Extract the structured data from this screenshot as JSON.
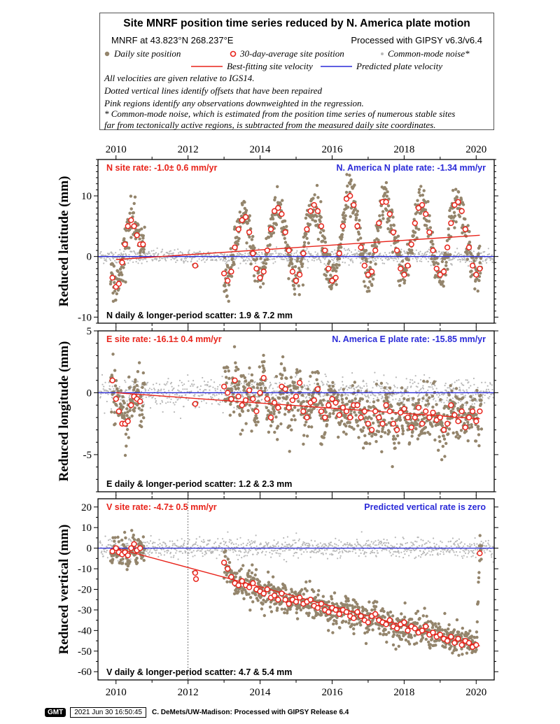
{
  "legend": {
    "title": "Site MNRF position time series reduced by N. America plate motion",
    "site_coords": "MNRF at 43.823°N 268.237°E",
    "processed": "Processed with GIPSY v6.3/v6.4",
    "daily_label": "Daily site position",
    "avg_label": "30-day-average site position",
    "cm_label": "Common-mode noise*",
    "best_fit_label": "Best-fitting site velocity",
    "predicted_label": "Predicted plate velocity",
    "notes": [
      "All velocities are given relative to IGS14.",
      "Dotted vertical lines identify offsets that have been repaired",
      "Pink regions identify any observations downweighted in the regression.",
      "* Common-mode noise, which is estimated from the position time series of numerous stable sites",
      "far from tectonically active regions, is subtracted from the measured daily site coordinates."
    ]
  },
  "colors": {
    "daily": "#94856c",
    "common_mode": "#b8b8b8",
    "avg_fill": "#ffffff",
    "avg_stroke": "#e8231a",
    "best_fit": "#e8231a",
    "predicted": "#2a2ad8",
    "site_rate_text": "#e8231a",
    "plate_rate_text": "#2a2ad8"
  },
  "footer": {
    "logo": "GMT",
    "timestamp": "2021 Jun 30 16:50:45",
    "credit": "C. DeMets/UW-Madison: Processed with GIPSY Release 6.4"
  },
  "chart_data": [
    {
      "type": "scatter",
      "component": "N",
      "ylabel": "Reduced latitude (mm)",
      "xlim": [
        2009.5,
        2020.5
      ],
      "ylim": [
        -11,
        16
      ],
      "xticks": [
        2010,
        2012,
        2014,
        2016,
        2018,
        2020
      ],
      "yticks": [
        -10,
        0,
        10
      ],
      "top_axis_labels": true,
      "bottom_axis_labels": false,
      "site_rate": "N site rate:  -1.0± 0.6 mm/yr",
      "plate_rate": "N. America N plate rate: -1.34 mm/yr",
      "scatter": "N daily & longer-period scatter:   1.9 &   7.2 mm",
      "best_fit": {
        "x": [
          2010.0,
          2020.1
        ],
        "y": [
          -0.5,
          3.5
        ]
      },
      "predicted": {
        "x": [
          2009.5,
          2020.5
        ],
        "y": [
          0,
          0
        ]
      },
      "offsets": [],
      "avg_x": [
        2009.9,
        2010.0,
        2010.08,
        2010.17,
        2010.25,
        2010.33,
        2010.42,
        2010.5,
        2010.58,
        2010.67,
        2010.75,
        2012.2,
        2013.0,
        2013.1,
        2013.2,
        2013.3,
        2013.4,
        2013.5,
        2013.6,
        2013.7,
        2013.8,
        2013.9,
        2014.0,
        2014.1,
        2014.2,
        2014.3,
        2014.4,
        2014.5,
        2014.6,
        2014.7,
        2014.8,
        2014.9,
        2015.0,
        2015.1,
        2015.2,
        2015.3,
        2015.4,
        2015.5,
        2015.6,
        2015.7,
        2015.8,
        2015.9,
        2016.0,
        2016.1,
        2016.2,
        2016.3,
        2016.4,
        2016.5,
        2016.6,
        2016.7,
        2016.8,
        2016.9,
        2017.0,
        2017.1,
        2017.2,
        2017.3,
        2017.4,
        2017.5,
        2017.6,
        2017.7,
        2017.8,
        2017.9,
        2018.0,
        2018.1,
        2018.2,
        2018.3,
        2018.4,
        2018.5,
        2018.6,
        2018.7,
        2018.8,
        2018.9,
        2019.0,
        2019.1,
        2019.2,
        2019.3,
        2019.4,
        2019.5,
        2019.6,
        2019.7,
        2019.8,
        2019.9,
        2020.0,
        2020.1
      ],
      "avg_y": [
        -3.5,
        -5.0,
        -4.5,
        -1.0,
        2.0,
        5.0,
        6.0,
        5.0,
        3.5,
        2.0,
        2.0,
        -1.5,
        -2.8,
        -4.0,
        -2.5,
        1.5,
        4.5,
        6.0,
        6.5,
        4.0,
        0.5,
        -2.0,
        -3.5,
        -2.5,
        1.0,
        4.5,
        7.5,
        8.0,
        7.0,
        4.0,
        1.0,
        -2.5,
        -4.0,
        -3.0,
        0.5,
        4.5,
        7.5,
        8.5,
        7.5,
        5.0,
        1.0,
        -2.0,
        -4.0,
        -3.5,
        0.5,
        5.0,
        9.5,
        10.0,
        8.5,
        5.0,
        1.5,
        -1.5,
        -3.0,
        -2.5,
        1.0,
        5.5,
        9.0,
        9.0,
        7.0,
        4.0,
        1.0,
        -2.0,
        -3.0,
        -1.5,
        2.0,
        5.5,
        8.0,
        8.5,
        7.0,
        4.0,
        1.0,
        -2.0,
        -3.0,
        -2.5,
        1.5,
        5.5,
        8.5,
        9.0,
        7.5,
        4.5,
        1.5,
        -1.5,
        -3.0,
        -2.0
      ]
    },
    {
      "type": "scatter",
      "component": "E",
      "ylabel": "Reduced longitude (mm)",
      "xlim": [
        2009.5,
        2020.5
      ],
      "ylim": [
        -8,
        5
      ],
      "xticks": [
        2010,
        2012,
        2014,
        2016,
        2018,
        2020
      ],
      "yticks": [
        -5,
        0,
        5
      ],
      "top_axis_labels": false,
      "bottom_axis_labels": false,
      "site_rate": "E site rate: -16.1± 0.4 mm/yr",
      "plate_rate": "N. America E plate rate: -15.85 mm/yr",
      "scatter": "E daily & longer-period scatter:   1.2 &   2.3 mm",
      "best_fit": {
        "x": [
          2010.0,
          2020.1
        ],
        "y": [
          0.0,
          -2.1
        ]
      },
      "predicted": {
        "x": [
          2009.5,
          2020.5
        ],
        "y": [
          0,
          0
        ]
      },
      "offsets": [],
      "avg_x": [
        2009.9,
        2010.0,
        2010.08,
        2010.17,
        2010.25,
        2010.33,
        2010.42,
        2010.5,
        2010.58,
        2010.67,
        2012.2,
        2013.0,
        2013.1,
        2013.2,
        2013.3,
        2013.4,
        2013.5,
        2013.6,
        2013.7,
        2013.8,
        2013.9,
        2014.0,
        2014.1,
        2014.2,
        2014.3,
        2014.4,
        2014.5,
        2014.6,
        2014.7,
        2014.8,
        2014.9,
        2015.0,
        2015.1,
        2015.2,
        2015.3,
        2015.4,
        2015.5,
        2015.6,
        2015.7,
        2015.8,
        2015.9,
        2016.0,
        2016.1,
        2016.2,
        2016.3,
        2016.4,
        2016.5,
        2016.6,
        2016.7,
        2016.8,
        2016.9,
        2017.0,
        2017.1,
        2017.2,
        2017.3,
        2017.4,
        2017.5,
        2017.6,
        2017.7,
        2017.8,
        2017.9,
        2018.0,
        2018.1,
        2018.2,
        2018.3,
        2018.4,
        2018.5,
        2018.6,
        2018.7,
        2018.8,
        2018.9,
        2019.0,
        2019.1,
        2019.2,
        2019.3,
        2019.4,
        2019.5,
        2019.6,
        2019.7,
        2019.8,
        2019.9,
        2020.0,
        2020.1
      ],
      "avg_y": [
        1.0,
        -0.5,
        -1.5,
        -2.5,
        -2.5,
        -2.3,
        -1.0,
        -0.3,
        -0.5,
        -0.7,
        -0.9,
        0.5,
        0.0,
        -0.5,
        1.0,
        -0.3,
        -1.0,
        -0.6,
        0.2,
        -0.5,
        -1.5,
        0.0,
        1.2,
        -0.5,
        -2.0,
        -0.8,
        -1.2,
        0.5,
        0.3,
        -1.2,
        -0.6,
        -0.3,
        0.8,
        -1.5,
        -2.0,
        -0.8,
        -0.6,
        0.3,
        -1.5,
        -2.0,
        -1.0,
        -0.5,
        -0.8,
        -1.8,
        -1.2,
        -1.5,
        -2.0,
        -1.0,
        -1.0,
        -2.0,
        -1.5,
        -2.5,
        -3.0,
        -1.5,
        -2.0,
        -2.5,
        -1.0,
        -1.5,
        -2.5,
        -3.0,
        -1.6,
        -1.3,
        -2.0,
        -2.8,
        -2.0,
        -1.2,
        -2.5,
        -1.5,
        -2.0,
        -1.6,
        -2.2,
        -2.0,
        -3.0,
        -2.5,
        -1.0,
        -1.8,
        -2.3,
        -1.5,
        -2.8,
        -2.0,
        -1.5,
        -2.3,
        -1.5
      ]
    },
    {
      "type": "scatter",
      "component": "V",
      "ylabel": "Reduced vertical (mm)",
      "xlim": [
        2009.5,
        2020.5
      ],
      "ylim": [
        -64,
        24
      ],
      "xticks": [
        2010,
        2012,
        2014,
        2016,
        2018,
        2020
      ],
      "yticks": [
        -60,
        -50,
        -40,
        -30,
        -20,
        -10,
        0,
        10,
        20
      ],
      "top_axis_labels": false,
      "bottom_axis_labels": true,
      "site_rate": "V site rate:  -4.7± 0.5 mm/yr",
      "plate_rate": "Predicted vertical rate is zero",
      "scatter": "V daily & longer-period scatter:   4.7 &   5.4 mm",
      "best_fit": {
        "x": [
          2010.0,
          2020.1
        ],
        "y": [
          0.0,
          -47.5
        ]
      },
      "predicted": {
        "x": [
          2009.5,
          2020.5
        ],
        "y": [
          0,
          0
        ]
      },
      "offsets": [
        2012.0
      ],
      "avg_x": [
        2009.9,
        2010.0,
        2010.08,
        2010.17,
        2010.25,
        2010.33,
        2010.42,
        2010.5,
        2010.58,
        2010.67,
        2012.2,
        2012.22,
        2013.0,
        2013.1,
        2013.2,
        2013.3,
        2013.4,
        2013.5,
        2013.6,
        2013.7,
        2013.8,
        2013.9,
        2014.0,
        2014.1,
        2014.2,
        2014.3,
        2014.4,
        2014.5,
        2014.6,
        2014.7,
        2014.8,
        2014.9,
        2015.0,
        2015.1,
        2015.2,
        2015.3,
        2015.4,
        2015.5,
        2015.6,
        2015.7,
        2015.8,
        2015.9,
        2016.0,
        2016.1,
        2016.2,
        2016.3,
        2016.4,
        2016.5,
        2016.6,
        2016.7,
        2016.8,
        2016.9,
        2017.0,
        2017.1,
        2017.2,
        2017.3,
        2017.4,
        2017.5,
        2017.6,
        2017.7,
        2017.8,
        2017.9,
        2018.0,
        2018.1,
        2018.2,
        2018.3,
        2018.4,
        2018.5,
        2018.6,
        2018.7,
        2018.8,
        2018.9,
        2019.0,
        2019.1,
        2019.2,
        2019.3,
        2019.4,
        2019.5,
        2019.6,
        2019.7,
        2019.8,
        2019.9,
        2020.0,
        2020.1
      ],
      "avg_y": [
        -1.5,
        0.0,
        -2.0,
        -3.0,
        -2.0,
        -3.5,
        0.0,
        2.0,
        -1.0,
        0.0,
        -12.0,
        -15.0,
        -7.0,
        -10.0,
        -14.0,
        -17.0,
        -18.0,
        -16.0,
        -18.0,
        -19.0,
        -17.0,
        -20.0,
        -21.0,
        -22.0,
        -20.0,
        -24.0,
        -23.0,
        -25.0,
        -22.0,
        -25.0,
        -27.0,
        -25.0,
        -26.0,
        -24.0,
        -27.0,
        -26.0,
        -25.0,
        -28.0,
        -29.0,
        -27.0,
        -30.0,
        -31.0,
        -29.0,
        -30.0,
        -32.0,
        -30.0,
        -31.0,
        -33.0,
        -34.0,
        -31.0,
        -33.0,
        -35.0,
        -36.0,
        -33.0,
        -32.0,
        -35.0,
        -36.0,
        -37.0,
        -35.0,
        -38.0,
        -39.0,
        -37.0,
        -36.0,
        -40.0,
        -38.0,
        -39.0,
        -41.0,
        -40.0,
        -38.0,
        -42.0,
        -41.0,
        -43.0,
        -42.0,
        -44.0,
        -45.0,
        -43.0,
        -46.0,
        -44.0,
        -47.0,
        -45.0,
        -46.0,
        -48.0,
        -47.0,
        -2.5
      ]
    }
  ]
}
